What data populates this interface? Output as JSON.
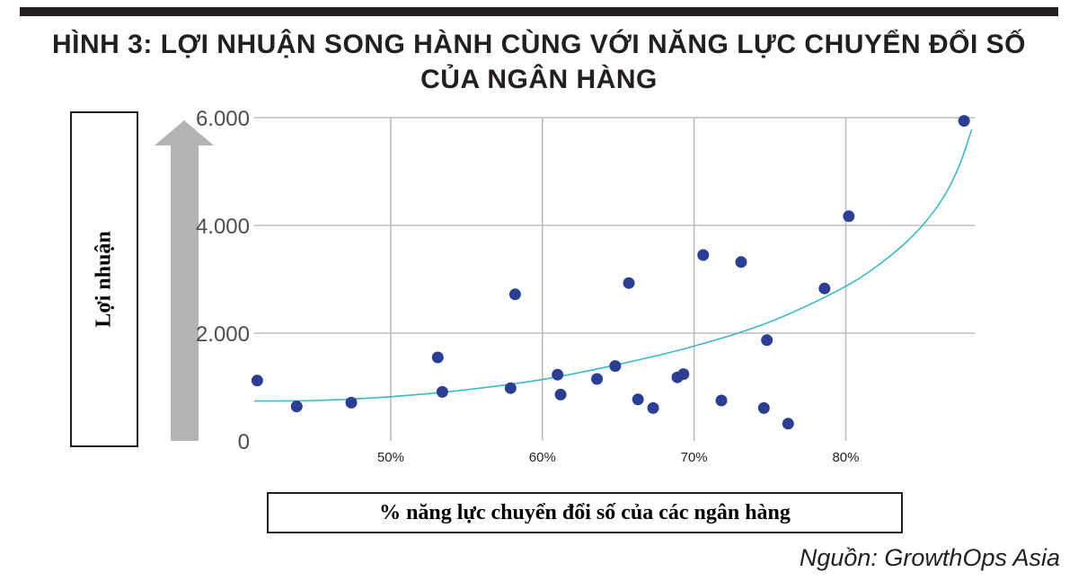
{
  "title_line1": "HÌNH 3: LỢI NHUẬN SONG HÀNH CÙNG VỚI NĂNG LỰC CHUYỂN ĐỔI SỐ",
  "title_line2": "CỦA NGÂN HÀNG",
  "source": "Nguồn: GrowthOps Asia",
  "colors": {
    "points": "#2c3e94",
    "trendline": "#3bb8c9",
    "grid": "#bdbdbd",
    "arrow": "#b3b3b3",
    "text": "#231f20"
  },
  "chart_data": {
    "type": "scatter",
    "xlabel": "% năng lực chuyển đổi số của các ngân hàng",
    "ylabel": "Lợi nhuận",
    "xlim": [
      41,
      88.5
    ],
    "ylim": [
      0,
      6000
    ],
    "x_ticks": [
      50,
      60,
      70,
      80
    ],
    "x_tick_labels": [
      "50%",
      "60%",
      "70%",
      "80%"
    ],
    "y_ticks": [
      0,
      2000,
      4000,
      6000
    ],
    "y_tick_labels": [
      "0",
      "2.000",
      "4.000",
      "6.000"
    ],
    "grid": true,
    "points": [
      {
        "x": 41.2,
        "y": 1120
      },
      {
        "x": 43.8,
        "y": 640
      },
      {
        "x": 47.4,
        "y": 710
      },
      {
        "x": 53.1,
        "y": 1550
      },
      {
        "x": 53.4,
        "y": 910
      },
      {
        "x": 57.9,
        "y": 980
      },
      {
        "x": 58.2,
        "y": 2720
      },
      {
        "x": 61.0,
        "y": 1230
      },
      {
        "x": 61.2,
        "y": 860
      },
      {
        "x": 63.6,
        "y": 1150
      },
      {
        "x": 64.8,
        "y": 1390
      },
      {
        "x": 65.7,
        "y": 2930
      },
      {
        "x": 66.3,
        "y": 770
      },
      {
        "x": 67.3,
        "y": 610
      },
      {
        "x": 68.9,
        "y": 1180
      },
      {
        "x": 69.3,
        "y": 1240
      },
      {
        "x": 70.6,
        "y": 3450
      },
      {
        "x": 71.8,
        "y": 750
      },
      {
        "x": 73.1,
        "y": 3320
      },
      {
        "x": 74.6,
        "y": 610
      },
      {
        "x": 74.8,
        "y": 1870
      },
      {
        "x": 76.2,
        "y": 320
      },
      {
        "x": 78.6,
        "y": 2830
      },
      {
        "x": 80.2,
        "y": 4170
      },
      {
        "x": 87.8,
        "y": 5940
      }
    ],
    "trendline": [
      {
        "x": 41.0,
        "y": 740
      },
      {
        "x": 45.0,
        "y": 750
      },
      {
        "x": 50.0,
        "y": 820
      },
      {
        "x": 55.0,
        "y": 950
      },
      {
        "x": 60.0,
        "y": 1140
      },
      {
        "x": 65.0,
        "y": 1420
      },
      {
        "x": 70.0,
        "y": 1760
      },
      {
        "x": 75.0,
        "y": 2210
      },
      {
        "x": 80.0,
        "y": 2870
      },
      {
        "x": 83.0,
        "y": 3450
      },
      {
        "x": 85.0,
        "y": 3980
      },
      {
        "x": 86.5,
        "y": 4550
      },
      {
        "x": 87.5,
        "y": 5120
      },
      {
        "x": 88.3,
        "y": 5780
      }
    ]
  }
}
